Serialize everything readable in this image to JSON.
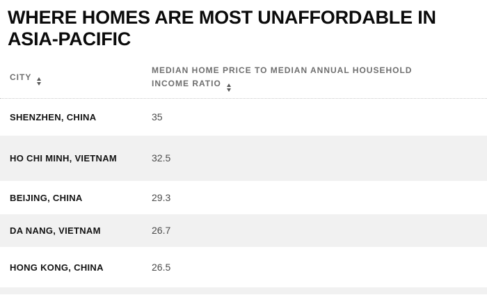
{
  "title": "WHERE HOMES ARE MOST UNAFFORDABLE IN ASIA-PACIFIC",
  "colors": {
    "background": "#ffffff",
    "stripe": "#f1f1f1",
    "header_text": "#6e6e6e",
    "city_text": "#121212",
    "value_text": "#4a4a4a",
    "title_text": "#0b0b0b",
    "divider": "#c9c9c9"
  },
  "icons": {
    "sort": "sort-arrows-icon"
  },
  "table": {
    "columns": [
      {
        "label": "CITY",
        "sortable": true
      },
      {
        "label": "MEDIAN HOME PRICE TO MEDIAN ANNUAL HOUSEHOLD INCOME RATIO",
        "sortable": true
      }
    ],
    "rows": [
      {
        "city": "SHENZHEN, CHINA",
        "ratio": "35"
      },
      {
        "city": "HO CHI MINH, VIETNAM",
        "ratio": "32.5"
      },
      {
        "city": "BEIJING, CHINA",
        "ratio": "29.3"
      },
      {
        "city": "DA NANG, VIETNAM",
        "ratio": "26.7"
      },
      {
        "city": "HONG KONG, CHINA",
        "ratio": "26.5"
      }
    ]
  },
  "chart_data": {
    "type": "table",
    "title": "WHERE HOMES ARE MOST UNAFFORDABLE IN ASIA-PACIFIC",
    "columns": [
      "CITY",
      "MEDIAN HOME PRICE TO MEDIAN ANNUAL HOUSEHOLD INCOME RATIO"
    ],
    "rows": [
      [
        "SHENZHEN, CHINA",
        35
      ],
      [
        "HO CHI MINH, VIETNAM",
        32.5
      ],
      [
        "BEIJING, CHINA",
        29.3
      ],
      [
        "DA NANG, VIETNAM",
        26.7
      ],
      [
        "HONG KONG, CHINA",
        26.5
      ]
    ],
    "layout_hints": {
      "zebra_striping": true,
      "sortable_columns": true,
      "header_divider": "dotted"
    }
  }
}
